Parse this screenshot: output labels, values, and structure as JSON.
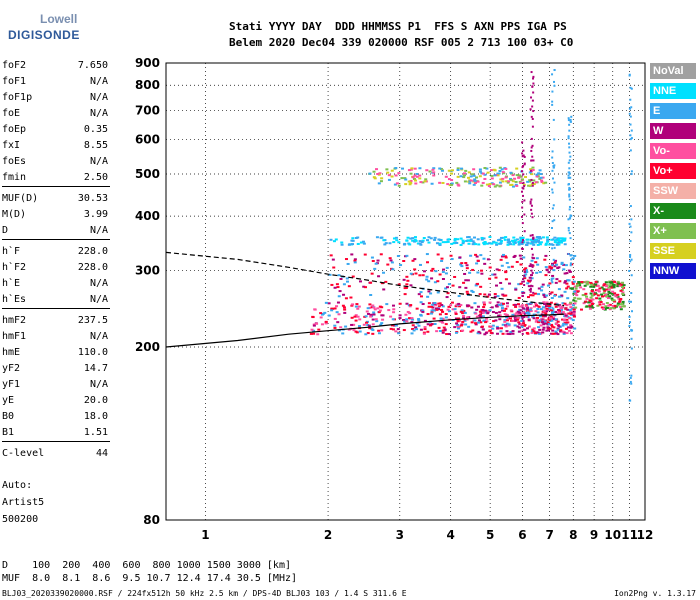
{
  "logo": {
    "line1": "Lowell",
    "line2": "DIGISONDE"
  },
  "header": {
    "row1": "Stati YYYY DAY  DDD HHMMSS P1  FFS S AXN PPS IGA PS",
    "row2": "Belem 2020 Dec04 339 020000 RSF 005 2 713 100 03+ C0"
  },
  "params": [
    {
      "key": "foF2",
      "value": "7.650"
    },
    {
      "key": "foF1",
      "value": "N/A"
    },
    {
      "key": "foF1p",
      "value": "N/A"
    },
    {
      "key": "foE",
      "value": "N/A"
    },
    {
      "key": "foEp",
      "value": "0.35"
    },
    {
      "key": "fxI",
      "value": "8.55"
    },
    {
      "key": "foEs",
      "value": "N/A"
    },
    {
      "key": "fmin",
      "value": "2.50"
    },
    {
      "key": "MUF(D)",
      "value": "30.53"
    },
    {
      "key": "M(D)",
      "value": "3.99"
    },
    {
      "key": "D",
      "value": "N/A"
    },
    {
      "key": "h`F",
      "value": "228.0"
    },
    {
      "key": "h`F2",
      "value": "228.0"
    },
    {
      "key": "h`E",
      "value": "N/A"
    },
    {
      "key": "h`Es",
      "value": "N/A"
    },
    {
      "key": "hmF2",
      "value": "237.5"
    },
    {
      "key": "hmF1",
      "value": "N/A"
    },
    {
      "key": "hmE",
      "value": "110.0"
    },
    {
      "key": "yF2",
      "value": "14.7"
    },
    {
      "key": "yF1",
      "value": "N/A"
    },
    {
      "key": "yE",
      "value": "20.0"
    },
    {
      "key": "B0",
      "value": "18.0"
    },
    {
      "key": "B1",
      "value": "1.51"
    },
    {
      "key": "C-level",
      "value": "44"
    }
  ],
  "auto": {
    "line1": "Auto:",
    "line2": "Artist5",
    "line3": "500200"
  },
  "legend": [
    {
      "label": "NoVal",
      "color": "#a0a0a0"
    },
    {
      "label": "NNE",
      "color": "#00e0ff"
    },
    {
      "label": "E",
      "color": "#3aa8f0"
    },
    {
      "label": "W",
      "color": "#b0007a"
    },
    {
      "label": "Vo-",
      "color": "#ff4fa0"
    },
    {
      "label": "Vo+",
      "color": "#ff0030"
    },
    {
      "label": "SSW",
      "color": "#f4b0a8"
    },
    {
      "label": "X-",
      "color": "#1a8a1a"
    },
    {
      "label": "X+",
      "color": "#7fc050"
    },
    {
      "label": "SSE",
      "color": "#d6d020"
    },
    {
      "label": "NNW",
      "color": "#1010d0"
    }
  ],
  "distance_table": {
    "row1": "D    100  200  400  600  800 1000 1500 3000 [km]",
    "row2": "MUF  8.0  8.1  8.6  9.5 10.7 12.4 17.4 30.5 [MHz]"
  },
  "footer": {
    "left": "BLJ03_2020339020000.RSF / 224fx512h 50 kHz 2.5 km / DPS-4D BLJ03 103 / 1.4 S 311.6 E",
    "right": "Ion2Png v. 1.3.17"
  },
  "chart_data": {
    "type": "scatter",
    "xlim": [
      0.8,
      12
    ],
    "ylim": [
      80,
      900
    ],
    "xticks": [
      1,
      2,
      3,
      4,
      5,
      6,
      7,
      8,
      9,
      10,
      11,
      12
    ],
    "yticks": [
      80,
      200,
      300,
      400,
      500,
      600,
      700,
      800,
      900
    ],
    "grid": true,
    "y_scale": "log",
    "x_scale": "log",
    "traces": {
      "f2_trace": [
        [
          0.8,
          200
        ],
        [
          1.2,
          207
        ],
        [
          1.6,
          214
        ],
        [
          2.0,
          218
        ],
        [
          2.5,
          222
        ],
        [
          3.0,
          226
        ],
        [
          4.0,
          231
        ],
        [
          5.0,
          234
        ],
        [
          6.0,
          236
        ],
        [
          7.0,
          237
        ],
        [
          7.6,
          238
        ]
      ],
      "profile_dashed": [
        [
          0.8,
          330
        ],
        [
          1.2,
          318
        ],
        [
          1.6,
          305
        ],
        [
          2.0,
          294
        ],
        [
          2.5,
          285
        ],
        [
          3.0,
          277
        ],
        [
          4.0,
          267
        ],
        [
          5.0,
          260
        ],
        [
          6.0,
          255
        ],
        [
          7.0,
          251
        ],
        [
          7.6,
          249
        ]
      ]
    },
    "echo_clusters": [
      {
        "x": [
          1.8,
          8.0
        ],
        "y": [
          215,
          255
        ],
        "note": "F trace ordinary/extra",
        "colors": [
          "#ff0030",
          "#ff4fa0",
          "#b0007a",
          "#3aa8f0"
        ]
      },
      {
        "x": [
          7.8,
          10.6
        ],
        "y": [
          245,
          285
        ],
        "colors": [
          "#ff0030",
          "#ff4fa0",
          "#7fc050",
          "#1a8a1a"
        ]
      },
      {
        "x": [
          2.5,
          6.8
        ],
        "y": [
          470,
          520
        ],
        "colors": [
          "#7fc050",
          "#d6d020",
          "#3aa8f0",
          "#ff4fa0"
        ]
      },
      {
        "x": [
          2.0,
          7.6
        ],
        "y": [
          345,
          360
        ],
        "colors": [
          "#3aa8f0",
          "#00e0ff"
        ]
      },
      {
        "x": [
          2.0,
          8.0
        ],
        "y": [
          260,
          330
        ],
        "colors": [
          "#b0007a",
          "#ff0030",
          "#3aa8f0"
        ]
      }
    ]
  }
}
